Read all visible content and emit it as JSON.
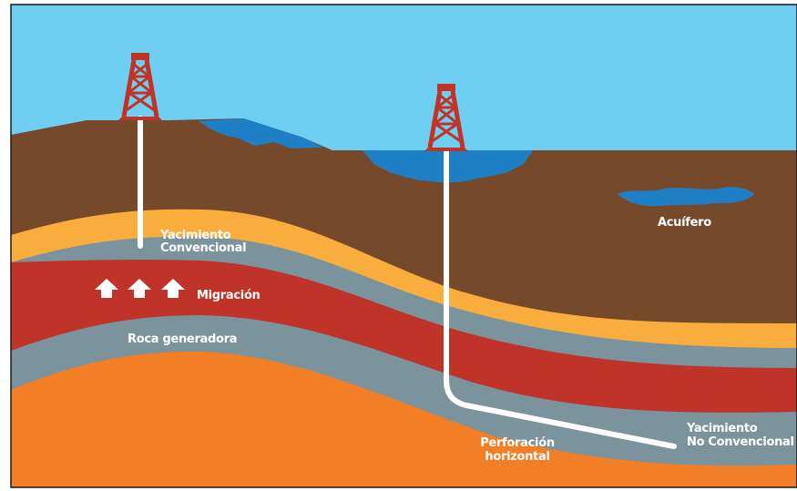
{
  "labels": {
    "conventional_reservoir": [
      "Yacimiento",
      "Convencional"
    ],
    "migration": "Migración",
    "source_rock": "Roca generadora",
    "aquifer": "Acuífero",
    "horizontal_drilling": [
      "Perforación",
      "horizontal"
    ],
    "unconventional_reservoir": [
      "Yacimiento",
      "No Convencional"
    ]
  },
  "colors": {
    "sky": "#6fcff2",
    "surface_soil": "#75492a",
    "water": "#1f7fc4",
    "conventional_layer": "#f9ad3c",
    "gray_layer": "#7a939c",
    "source_layer": "#bf3328",
    "deep_layer": "#f27f25",
    "derrick": "#c13227",
    "well": "#ffffff"
  },
  "icons": [
    "oil-derrick-icon",
    "up-arrow-icon"
  ]
}
